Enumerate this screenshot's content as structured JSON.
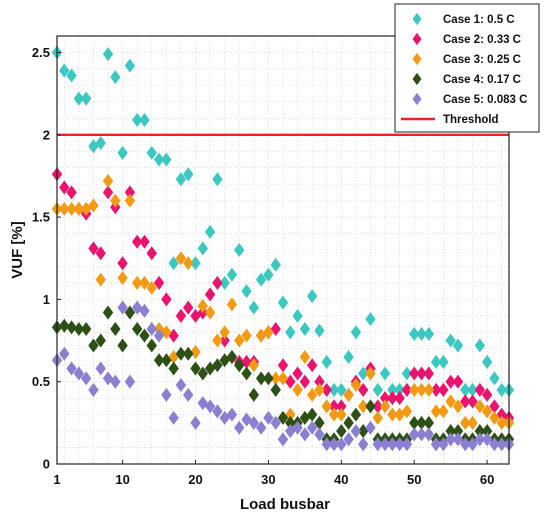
{
  "chart_data": {
    "type": "scatter",
    "xlabel": "Load busbar",
    "ylabel": "VUF [%]",
    "xlim": [
      1,
      63
    ],
    "ylim": [
      0,
      2.6
    ],
    "xticks": [
      1,
      10,
      20,
      30,
      40,
      50,
      60
    ],
    "yticks": [
      0,
      0.5,
      1,
      1.5,
      2,
      2.5
    ],
    "ytick_labels": [
      "0",
      "0.5",
      "1",
      "1.5",
      "2",
      "2.5"
    ],
    "grid": true,
    "legend_position": "top-right",
    "threshold": {
      "name": "Threshold",
      "value": 2,
      "color": "#ee2222"
    },
    "series": [
      {
        "name": "Case 1: 0.5 C",
        "color": "#3cc8c0",
        "marker": "diamond",
        "x": [
          1,
          2,
          3,
          4,
          5,
          6,
          7,
          8,
          9,
          10,
          11,
          12,
          13,
          14,
          15,
          16,
          17,
          18,
          19,
          20,
          21,
          22,
          23,
          24,
          25,
          26,
          27,
          28,
          29,
          30,
          31,
          32,
          33,
          34,
          35,
          36,
          37,
          38,
          39,
          40,
          41,
          42,
          43,
          44,
          45,
          46,
          47,
          48,
          49,
          50,
          51,
          52,
          53,
          54,
          55,
          56,
          57,
          58,
          59,
          60,
          61,
          62,
          63
        ],
        "y": [
          2.5,
          2.39,
          2.36,
          2.22,
          2.22,
          1.93,
          1.95,
          2.49,
          2.35,
          1.89,
          2.42,
          2.09,
          2.09,
          1.89,
          1.85,
          1.85,
          1.22,
          1.73,
          1.76,
          1.22,
          1.31,
          1.41,
          1.73,
          1.1,
          1.15,
          1.3,
          1.05,
          0.95,
          1.12,
          1.15,
          1.21,
          0.98,
          0.8,
          0.9,
          0.82,
          1.02,
          0.81,
          0.62,
          0.45,
          0.45,
          0.65,
          0.8,
          0.55,
          0.88,
          0.45,
          0.55,
          0.45,
          0.45,
          0.55,
          0.79,
          0.79,
          0.79,
          0.62,
          0.62,
          0.75,
          0.72,
          0.45,
          0.45,
          0.72,
          0.62,
          0.52,
          0.45,
          0.45
        ]
      },
      {
        "name": "Case 2: 0.33 C",
        "color": "#e8146e",
        "marker": "diamond",
        "x": [
          1,
          2,
          3,
          4,
          5,
          6,
          7,
          8,
          9,
          10,
          11,
          12,
          13,
          14,
          15,
          16,
          17,
          18,
          19,
          20,
          21,
          22,
          23,
          24,
          25,
          26,
          27,
          28,
          29,
          30,
          31,
          32,
          33,
          34,
          35,
          36,
          37,
          38,
          39,
          40,
          41,
          42,
          43,
          44,
          45,
          46,
          47,
          48,
          49,
          50,
          51,
          52,
          53,
          54,
          55,
          56,
          57,
          58,
          59,
          60,
          61,
          62,
          63
        ],
        "y": [
          1.76,
          1.68,
          1.65,
          1.55,
          1.52,
          1.31,
          1.28,
          1.65,
          1.56,
          1.22,
          1.65,
          1.35,
          1.35,
          1.28,
          1.1,
          1.0,
          0.78,
          0.9,
          0.95,
          0.9,
          0.92,
          1.03,
          1.1,
          0.75,
          0.65,
          0.62,
          0.62,
          0.62,
          0.78,
          0.8,
          0.82,
          0.6,
          0.5,
          0.55,
          0.5,
          0.6,
          0.5,
          0.45,
          0.35,
          0.35,
          0.42,
          0.5,
          0.45,
          0.58,
          0.35,
          0.4,
          0.4,
          0.4,
          0.45,
          0.55,
          0.55,
          0.55,
          0.45,
          0.45,
          0.5,
          0.5,
          0.38,
          0.38,
          0.45,
          0.42,
          0.35,
          0.3,
          0.28
        ]
      },
      {
        "name": "Case 3: 0.25 C",
        "color": "#f39a14",
        "marker": "diamond",
        "x": [
          1,
          2,
          3,
          4,
          5,
          6,
          7,
          8,
          9,
          10,
          11,
          12,
          13,
          14,
          15,
          16,
          17,
          18,
          19,
          20,
          21,
          22,
          23,
          24,
          25,
          26,
          27,
          28,
          29,
          30,
          31,
          32,
          33,
          34,
          35,
          36,
          37,
          38,
          39,
          40,
          41,
          42,
          43,
          44,
          45,
          46,
          47,
          48,
          49,
          50,
          51,
          52,
          53,
          54,
          55,
          56,
          57,
          58,
          59,
          60,
          61,
          62,
          63
        ],
        "y": [
          1.55,
          1.55,
          1.55,
          1.55,
          1.55,
          1.57,
          1.12,
          1.72,
          1.6,
          1.13,
          1.6,
          1.1,
          1.1,
          1.07,
          0.82,
          0.8,
          0.65,
          1.25,
          1.22,
          0.68,
          0.96,
          0.92,
          0.75,
          0.8,
          0.97,
          0.75,
          0.78,
          0.6,
          0.78,
          0.8,
          0.52,
          0.52,
          0.3,
          0.45,
          0.65,
          0.42,
          0.45,
          0.35,
          0.3,
          0.3,
          0.42,
          0.48,
          0.35,
          0.55,
          0.28,
          0.35,
          0.3,
          0.3,
          0.32,
          0.45,
          0.45,
          0.45,
          0.32,
          0.32,
          0.38,
          0.35,
          0.25,
          0.25,
          0.35,
          0.32,
          0.28,
          0.25,
          0.25
        ]
      },
      {
        "name": "Case 4: 0.17 C",
        "color": "#2d5016",
        "marker": "diamond",
        "x": [
          1,
          2,
          3,
          4,
          5,
          6,
          7,
          8,
          9,
          10,
          11,
          12,
          13,
          14,
          15,
          16,
          17,
          18,
          19,
          20,
          21,
          22,
          23,
          24,
          25,
          26,
          27,
          28,
          29,
          30,
          31,
          32,
          33,
          34,
          35,
          36,
          37,
          38,
          39,
          40,
          41,
          42,
          43,
          44,
          45,
          46,
          47,
          48,
          49,
          50,
          51,
          52,
          53,
          54,
          55,
          56,
          57,
          58,
          59,
          60,
          61,
          62,
          63
        ],
        "y": [
          0.83,
          0.84,
          0.83,
          0.82,
          0.82,
          0.72,
          0.75,
          0.92,
          0.82,
          0.72,
          0.92,
          0.82,
          0.78,
          0.72,
          0.63,
          0.63,
          0.58,
          0.67,
          0.67,
          0.58,
          0.55,
          0.58,
          0.6,
          0.63,
          0.65,
          0.6,
          0.55,
          0.42,
          0.52,
          0.52,
          0.45,
          0.28,
          0.25,
          0.25,
          0.28,
          0.3,
          0.25,
          0.15,
          0.15,
          0.2,
          0.25,
          0.3,
          0.2,
          0.35,
          0.15,
          0.15,
          0.15,
          0.15,
          0.15,
          0.25,
          0.25,
          0.25,
          0.15,
          0.15,
          0.2,
          0.2,
          0.15,
          0.15,
          0.2,
          0.2,
          0.15,
          0.15,
          0.15
        ]
      },
      {
        "name": "Case 5: 0.083 C",
        "color": "#8a7fd0",
        "marker": "diamond",
        "x": [
          1,
          2,
          3,
          4,
          5,
          6,
          7,
          8,
          9,
          10,
          11,
          12,
          13,
          14,
          15,
          16,
          17,
          18,
          19,
          20,
          21,
          22,
          23,
          24,
          25,
          26,
          27,
          28,
          29,
          30,
          31,
          32,
          33,
          34,
          35,
          36,
          37,
          38,
          39,
          40,
          41,
          42,
          43,
          44,
          45,
          46,
          47,
          48,
          49,
          50,
          51,
          52,
          53,
          54,
          55,
          56,
          57,
          58,
          59,
          60,
          61,
          62,
          63
        ],
        "y": [
          0.63,
          0.67,
          0.58,
          0.55,
          0.52,
          0.45,
          0.58,
          0.52,
          0.5,
          0.95,
          0.5,
          0.95,
          0.93,
          0.82,
          0.78,
          0.42,
          0.28,
          0.48,
          0.42,
          0.25,
          0.37,
          0.35,
          0.32,
          0.28,
          0.3,
          0.22,
          0.27,
          0.25,
          0.22,
          0.28,
          0.25,
          0.15,
          0.2,
          0.22,
          0.18,
          0.22,
          0.18,
          0.12,
          0.12,
          0.12,
          0.15,
          0.2,
          0.12,
          0.22,
          0.12,
          0.12,
          0.12,
          0.12,
          0.12,
          0.18,
          0.18,
          0.18,
          0.12,
          0.12,
          0.15,
          0.15,
          0.12,
          0.12,
          0.15,
          0.15,
          0.12,
          0.12,
          0.12
        ]
      }
    ]
  }
}
